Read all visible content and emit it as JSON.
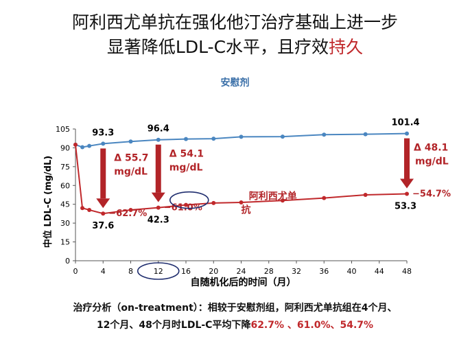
{
  "title": {
    "line1": "阿利西尤单抗在强化他汀治疗基础上进一步",
    "line2_prefix": "显著降低LDL-C水平，且疗效",
    "line2_highlight": "持久"
  },
  "colors": {
    "placebo": "#4a86c0",
    "alirocumab": "#c0282b",
    "annotation": "#b22428",
    "circle": "#1f2d6e"
  },
  "chart_data": {
    "type": "line",
    "xlabel": "自随机化后的时间（月）",
    "ylabel": "中位 LDL-C (mg/dL)",
    "xlim": [
      0,
      48
    ],
    "ylim": [
      0,
      105
    ],
    "xticks": [
      0,
      4,
      8,
      12,
      16,
      20,
      24,
      28,
      32,
      36,
      40,
      44,
      48
    ],
    "yticks": [
      0,
      15,
      30,
      45,
      60,
      75,
      90,
      105
    ],
    "circled_xtick": 12,
    "series": [
      {
        "name": "安慰剂",
        "color": "#4a86c0",
        "x": [
          0,
          1,
          2,
          4,
          8,
          12,
          16,
          20,
          24,
          30,
          36,
          42,
          48
        ],
        "y": [
          92.5,
          90.5,
          91.5,
          93.3,
          95.0,
          96.4,
          97.0,
          97.3,
          98.8,
          98.9,
          100.5,
          100.8,
          101.4
        ]
      },
      {
        "name": "阿利西尤单抗",
        "color": "#c0282b",
        "x": [
          0,
          1,
          2,
          4,
          8,
          12,
          16,
          20,
          24,
          30,
          36,
          42,
          48
        ],
        "y": [
          92.5,
          42.0,
          40.5,
          37.6,
          40.5,
          42.3,
          44.5,
          46.0,
          46.5,
          48.0,
          50.0,
          52.5,
          53.3
        ]
      }
    ],
    "value_labels": [
      {
        "text": "93.3",
        "x": 4,
        "y": 93.3,
        "series": 0
      },
      {
        "text": "96.4",
        "x": 12,
        "y": 96.4,
        "series": 0
      },
      {
        "text": "101.4",
        "x": 48,
        "y": 101.4,
        "series": 0
      },
      {
        "text": "37.6",
        "x": 4,
        "y": 37.6,
        "series": 1
      },
      {
        "text": "42.3",
        "x": 12,
        "y": 42.3,
        "series": 1
      },
      {
        "text": "53.3",
        "x": 48,
        "y": 53.3,
        "series": 1
      }
    ],
    "deltas": [
      {
        "x": 4,
        "label1": "Δ 55.7",
        "label2": "mg/dL",
        "pct": "−62.7%"
      },
      {
        "x": 12,
        "label1": "Δ 54.1",
        "label2": "mg/dL",
        "pct": "−61.0%"
      },
      {
        "x": 48,
        "label1": "Δ 48.1",
        "label2": "mg/dL",
        "pct": "−54.7%"
      }
    ],
    "series_label_alirocumab": {
      "line1": "阿利西尤单",
      "line2": "抗"
    }
  },
  "placebo_label": "安慰剂",
  "footnote": {
    "line1": "治疗分析（on-treatment）：相较于安慰剂组，阿利西尤单抗组在4个月、",
    "line2_prefix": "12个月、48个月时LDL-C平均下降",
    "line2_values": "62.7% 、61.0%、54.7%"
  }
}
